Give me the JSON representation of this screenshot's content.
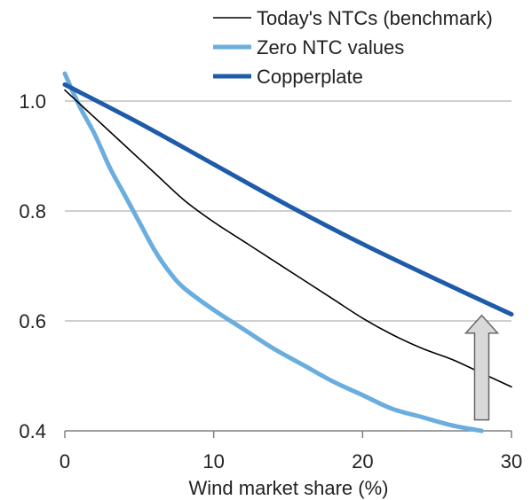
{
  "chart_data": {
    "type": "line",
    "title": "",
    "xlabel": "Wind market share (%)",
    "ylabel": "",
    "xlim": [
      0,
      30
    ],
    "ylim": [
      0.4,
      1.0
    ],
    "xticks": [
      0,
      10,
      20,
      30
    ],
    "yticks": [
      0.4,
      0.6,
      0.8,
      1.0
    ],
    "xtick_labels": [
      "0",
      "10",
      "20",
      "30"
    ],
    "ytick_labels": [
      "0.4",
      "0.6",
      "0.8",
      "1.0"
    ],
    "grid": "horizontal",
    "legend_position": "top-right",
    "series": [
      {
        "name": "Today's NTCs (benchmark)",
        "color": "#000000",
        "x": [
          0,
          2,
          4,
          6,
          8,
          10,
          12,
          14,
          16,
          18,
          20,
          22,
          24,
          26,
          28,
          30
        ],
        "y": [
          1.02,
          0.97,
          0.92,
          0.87,
          0.82,
          0.78,
          0.745,
          0.71,
          0.675,
          0.64,
          0.605,
          0.575,
          0.55,
          0.53,
          0.505,
          0.48
        ]
      },
      {
        "name": "Zero NTC values",
        "color": "#6AADDE",
        "x": [
          0,
          1,
          2,
          3,
          4,
          5,
          6,
          7,
          8,
          10,
          12,
          14,
          16,
          18,
          20,
          22,
          24,
          26,
          28
        ],
        "y": [
          1.05,
          0.99,
          0.94,
          0.88,
          0.83,
          0.78,
          0.73,
          0.69,
          0.66,
          0.62,
          0.585,
          0.55,
          0.52,
          0.49,
          0.465,
          0.44,
          0.425,
          0.41,
          0.4
        ]
      },
      {
        "name": "Copperplate",
        "color": "#1E5BA8",
        "x": [
          0,
          5,
          10,
          15,
          20,
          25,
          30
        ],
        "y": [
          1.03,
          0.96,
          0.885,
          0.81,
          0.74,
          0.675,
          0.612
        ]
      }
    ],
    "annotations": [
      {
        "type": "arrow",
        "direction": "up",
        "x": 28,
        "y_from": 0.42,
        "y_to": 0.61,
        "fill": "#D9D9D9",
        "stroke": "#666666"
      }
    ]
  }
}
